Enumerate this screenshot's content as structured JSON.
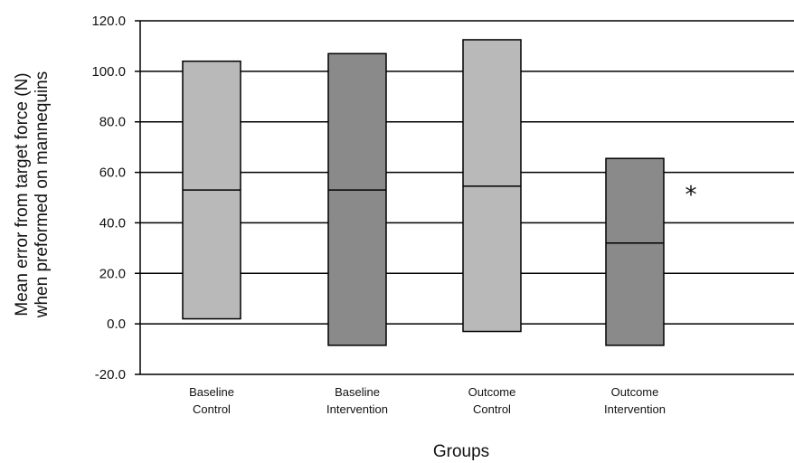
{
  "chart_data": {
    "type": "box",
    "title": "",
    "xlabel": "Groups",
    "ylabel_lines": [
      "Mean error from target force (N)",
      "when preformed on mannequins"
    ],
    "ylim": [
      -20,
      120
    ],
    "yticks": [
      "-20.0",
      "0.0",
      "20.0",
      "40.0",
      "60.0",
      "80.0",
      "100.0",
      "120.0"
    ],
    "yticks_values": [
      -20,
      0,
      20,
      40,
      60,
      80,
      100,
      120
    ],
    "grid": "horizontal",
    "categories": [
      {
        "line1": "Baseline",
        "line2": "Control"
      },
      {
        "line1": "Baseline",
        "line2": "Intervention"
      },
      {
        "line1": "Outcome",
        "line2": "Control"
      },
      {
        "line1": "Outcome",
        "line2": "Intervention"
      }
    ],
    "boxes": [
      {
        "low": 2,
        "median": 53,
        "high": 104,
        "color": "#b9b9b9"
      },
      {
        "low": -8.5,
        "median": 53,
        "high": 107,
        "color": "#8a8a8a"
      },
      {
        "low": -3,
        "median": 54.5,
        "high": 112.5,
        "color": "#b9b9b9"
      },
      {
        "low": -8.5,
        "median": 32,
        "high": 65.5,
        "color": "#8a8a8a"
      }
    ],
    "annotations": [
      {
        "text": "*",
        "category_index": 3,
        "y": 53
      }
    ]
  }
}
